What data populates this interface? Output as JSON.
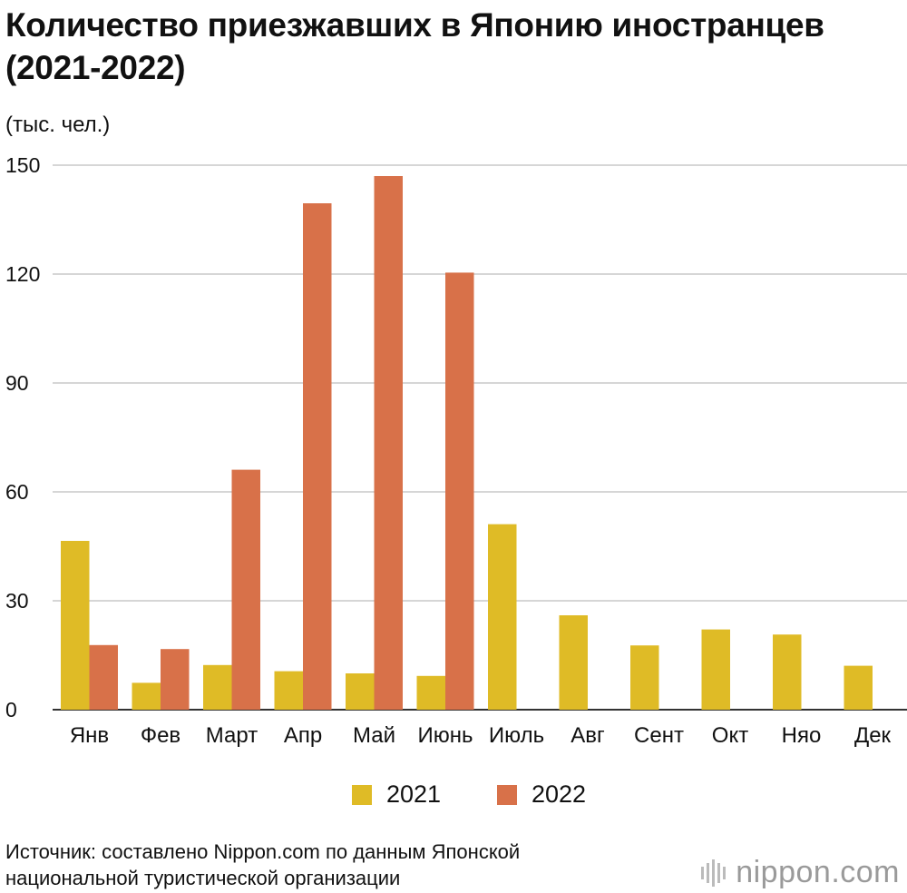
{
  "title": "Количество приезжавших в Японию иностранцев (2021-2022)",
  "unit_label": "(тыс. чел.)",
  "source": {
    "line1": "Источник: составлено Nippon.com по данным Японской",
    "line2": "национальной туристической организации"
  },
  "logo": {
    "text": "nippon.com"
  },
  "colors": {
    "series_2021": "#dfbb26",
    "series_2022": "#d87149",
    "grid": "#c8c8c8",
    "axis": "#333333"
  },
  "chart_data": {
    "type": "bar",
    "categories": [
      "Янв",
      "Фев",
      "Март",
      "Апр",
      "Май",
      "Июнь",
      "Июль",
      "Авг",
      "Сент",
      "Окт",
      "Няо",
      "Дек"
    ],
    "series": [
      {
        "name": "2021",
        "values": [
          46.5,
          7.4,
          12.3,
          10.6,
          10.0,
          9.3,
          51.1,
          26.0,
          17.7,
          22.1,
          20.7,
          12.1
        ]
      },
      {
        "name": "2022",
        "values": [
          17.8,
          16.7,
          66.1,
          139.5,
          147.0,
          120.4,
          null,
          null,
          null,
          null,
          null,
          null
        ]
      }
    ],
    "ylim": [
      0,
      150
    ],
    "yticks": [
      0,
      30,
      60,
      90,
      120,
      150
    ],
    "grid": true,
    "legend_position": "bottom"
  }
}
